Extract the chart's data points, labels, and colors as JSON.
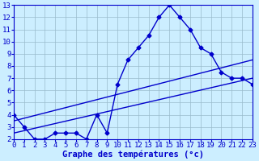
{
  "xlabel": "Graphe des températures (°c)",
  "bg_color": "#cceeff",
  "line_color": "#0000cc",
  "x_min": 0,
  "x_max": 23,
  "y_min": 2,
  "y_max": 13,
  "line1_x": [
    0,
    1,
    2,
    3,
    4,
    5,
    6,
    7,
    8,
    9,
    10,
    11,
    12,
    13,
    14,
    15,
    16,
    17,
    18,
    19,
    20,
    21,
    22,
    23
  ],
  "line1_y": [
    4,
    3,
    2,
    2,
    2.5,
    2.5,
    2.5,
    2,
    4,
    2.5,
    6.5,
    8.5,
    9.5,
    10.5,
    12,
    13,
    12,
    11,
    9.5,
    9,
    7.5,
    7,
    7,
    6.5
  ],
  "line2_x": [
    0,
    23
  ],
  "line2_y": [
    3.5,
    8.5
  ],
  "line3_x": [
    0,
    23
  ],
  "line3_y": [
    2.5,
    7.0
  ],
  "grid_color": "#99bbcc",
  "marker": "D",
  "marker_size": 2.5,
  "line_width": 1.0,
  "tick_fontsize": 6.5,
  "xlabel_fontsize": 7.5
}
